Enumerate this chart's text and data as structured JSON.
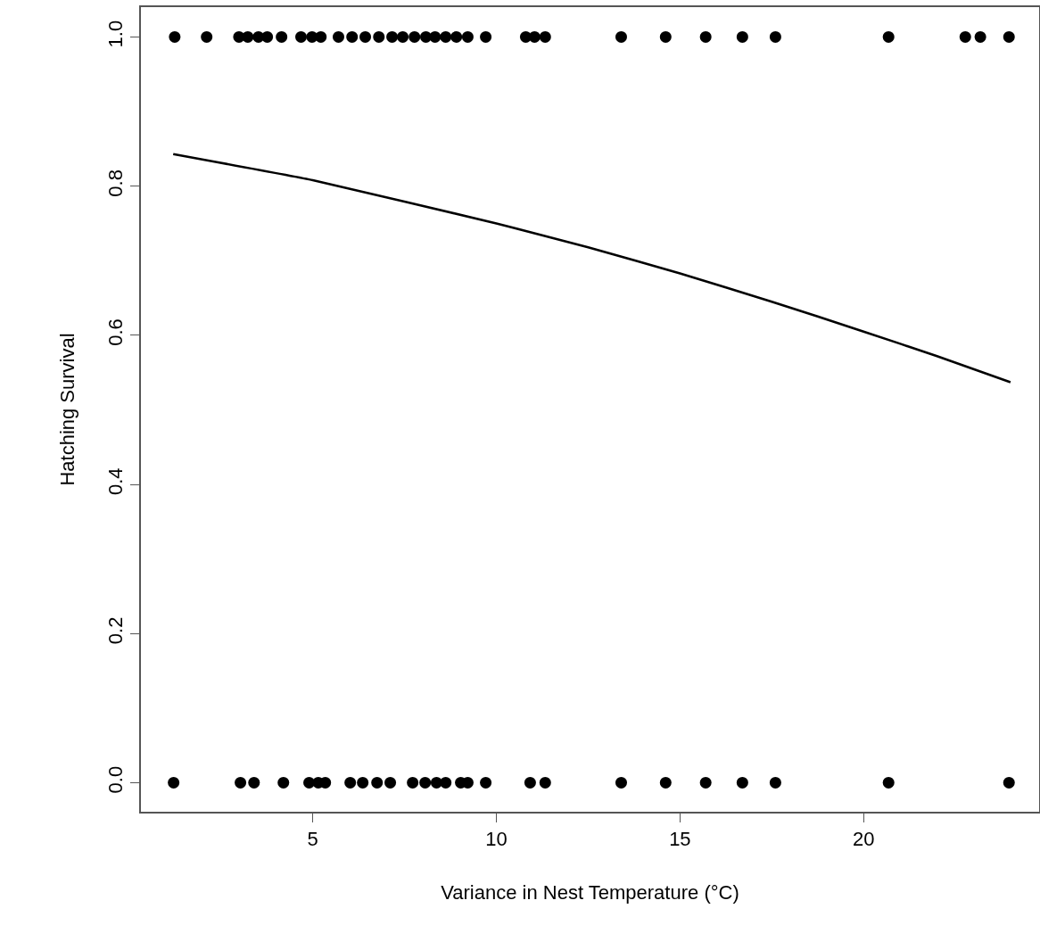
{
  "chart_data": {
    "type": "scatter",
    "xlabel": "Variance in Nest Temperature (°C)",
    "ylabel": "Hatching Survival",
    "xlim": [
      0.32,
      24.78
    ],
    "ylim": [
      -0.039,
      1.04
    ],
    "xticks": [
      5,
      10,
      15,
      20
    ],
    "yticks": [
      {
        "value": 0,
        "label": "0.0"
      },
      0.2,
      0.4,
      0.6,
      0.8,
      {
        "value": 1,
        "label": "1.0"
      }
    ],
    "grid": false,
    "marker": "circle",
    "series": [
      {
        "color": "#000000",
        "x": [
          1.24,
          2.11,
          2.99,
          3.23,
          3.52,
          3.76,
          4.15,
          4.68,
          4.98,
          5.22,
          5.7,
          6.07,
          6.43,
          6.8,
          7.16,
          7.45,
          7.77,
          8.08,
          8.33,
          8.62,
          8.91,
          9.22,
          9.71,
          10.8,
          11.04,
          11.33,
          13.4,
          14.61,
          15.7,
          16.7,
          17.6,
          20.68,
          22.77,
          23.18,
          23.96,
          1.21,
          3.03,
          3.4,
          4.2,
          4.9,
          5.15,
          5.34,
          6.02,
          6.36,
          6.75,
          7.11,
          7.72,
          8.06,
          8.37,
          8.62,
          9.03,
          9.22,
          9.71,
          10.92,
          11.33,
          13.4,
          14.61,
          15.7,
          16.7,
          17.6,
          20.68,
          23.96
        ],
        "values": [
          1,
          1,
          1,
          1,
          1,
          1,
          1,
          1,
          1,
          1,
          1,
          1,
          1,
          1,
          1,
          1,
          1,
          1,
          1,
          1,
          1,
          1,
          1,
          1,
          1,
          1,
          1,
          1,
          1,
          1,
          1,
          1,
          1,
          1,
          1,
          0,
          0,
          0,
          0,
          0,
          0,
          0,
          0,
          0,
          0,
          0,
          0,
          0,
          0,
          0,
          0,
          0,
          0,
          0,
          0,
          0,
          0,
          0,
          0,
          0,
          0,
          0
        ]
      },
      {
        "type": "line",
        "color": "#000000",
        "marker": "none",
        "line_style": "solid",
        "x": [
          1.2,
          5,
          10,
          12.5,
          15,
          17.5,
          20,
          22,
          24
        ],
        "values": [
          0.843,
          0.808,
          0.75,
          0.718,
          0.683,
          0.645,
          0.605,
          0.572,
          0.537
        ]
      }
    ]
  }
}
